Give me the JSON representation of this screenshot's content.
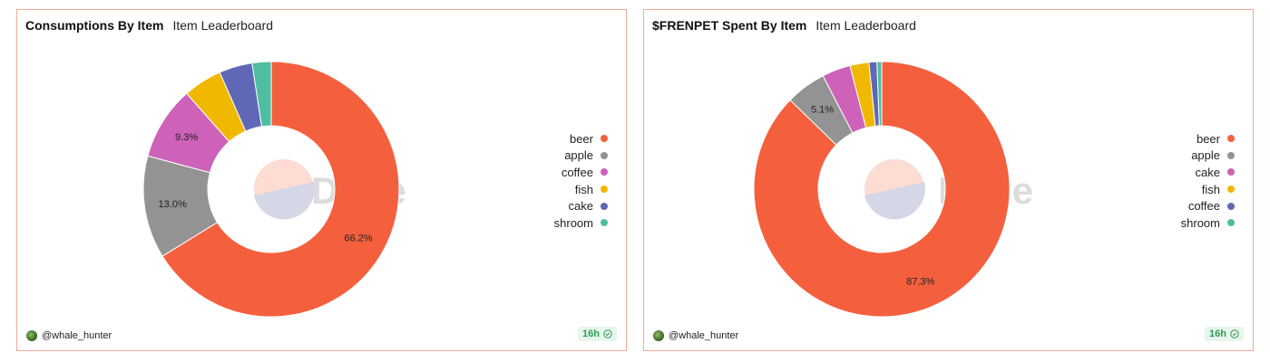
{
  "panels": [
    {
      "title": "Consumptions By Item",
      "subtitle": "Item Leaderboard",
      "watermark": "Dune",
      "user": "@whale_hunter",
      "freshness": "16h",
      "legend": [
        "beer",
        "apple",
        "coffee",
        "fish",
        "cake",
        "shroom"
      ]
    },
    {
      "title": "$FRENPET Spent By Item",
      "subtitle": "Item Leaderboard",
      "watermark": "Dune",
      "user": "@whale_hunter",
      "freshness": "16h",
      "legend": [
        "beer",
        "apple",
        "cake",
        "fish",
        "coffee",
        "shroom"
      ]
    }
  ],
  "colors": {
    "beer": "#f4603e",
    "apple": "#939393",
    "coffee": "#cd62b8",
    "cake": "#cd62b8",
    "fish": "#f1b800",
    "cake2": "#5e68b6",
    "coffee2": "#5e68b6",
    "shroom": "#4fbda0",
    "border": "#f2a99a",
    "badge_green": "#2f9c55"
  },
  "chart_data": [
    {
      "type": "pie",
      "donut": true,
      "title": "Consumptions By Item",
      "subtitle": "Item Leaderboard",
      "labels": [
        "beer",
        "apple",
        "coffee",
        "fish",
        "cake",
        "shroom"
      ],
      "values": [
        66.2,
        13.0,
        9.3,
        4.9,
        4.2,
        2.4
      ],
      "colors": [
        "#f4603e",
        "#939393",
        "#cd62b8",
        "#f1b800",
        "#5e68b6",
        "#4fbda0"
      ],
      "data_labels": [
        "66.2%",
        "13.0%",
        "9.3%",
        "",
        "",
        ""
      ],
      "legend_position": "right"
    },
    {
      "type": "pie",
      "donut": true,
      "title": "$FRENPET Spent By Item",
      "subtitle": "Item Leaderboard",
      "labels": [
        "beer",
        "apple",
        "cake",
        "fish",
        "coffee",
        "shroom"
      ],
      "values": [
        87.3,
        5.1,
        3.6,
        2.4,
        1.0,
        0.6
      ],
      "colors": [
        "#f4603e",
        "#939393",
        "#cd62b8",
        "#f1b800",
        "#5e68b6",
        "#4fbda0"
      ],
      "data_labels": [
        "87.3%",
        "5.1%",
        "",
        "",
        "",
        ""
      ],
      "legend_position": "right"
    }
  ]
}
